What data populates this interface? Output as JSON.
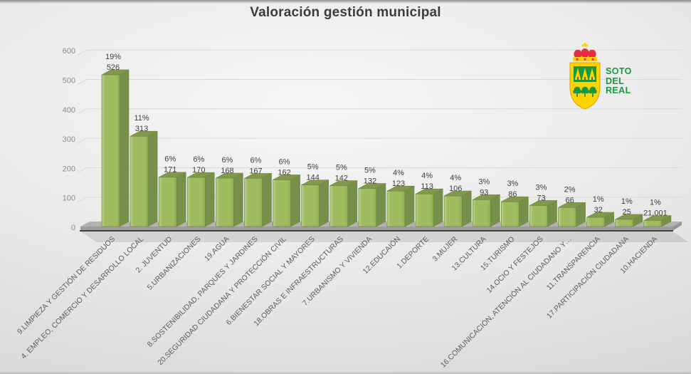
{
  "title": "Valoración gestión municipal",
  "logo": {
    "line1": "SOTO",
    "line2": "DEL",
    "line3": "REAL",
    "green": "#19993f",
    "yellow": "#ffd200",
    "red": "#e62e3e",
    "white": "#ffffff"
  },
  "chart_data": {
    "type": "bar",
    "style": "3d-column",
    "title": "Valoración gestión municipal",
    "categories": [
      "9.LIMPIEZA Y GESTIÓN DE RESIDUOS",
      "4. EMPLEO, COMERCIO Y DESARROLLO LOCAL",
      "2. JUVENTUD",
      "5.URBANIZACIONES",
      "19.AGUA",
      "8.SOSTENIBILIDAD, PARQUES Y JARDINES",
      "20.SEGURIDAD CIUDADANA Y PROTECCIÓN CIVIL",
      "6.BIENESTAR SOCIAL Y MAYORES",
      "18.OBRAS E INFRAESTRUCTURAS",
      "7.URBANISMO Y VIVIENDA",
      "12.EDUCAIÓN",
      "1.DEPORTE",
      "3.MUJER",
      "13.CULTURA",
      "15.TURISMO",
      "14.OCIO Y FESTEJOS",
      "16.COMUNICACIÓN, ATENCIÓN AL CIUDADANO Y…",
      "11.TRANSPARENCIA",
      "17.PARTICIPACIÓN CIUDADANA",
      "10.HACIENDA"
    ],
    "values": [
      526,
      313,
      171,
      170,
      168,
      167,
      162,
      144,
      142,
      132,
      123,
      113,
      106,
      93,
      86,
      73,
      66,
      32,
      25,
      21.001
    ],
    "value_labels": [
      "526",
      "313",
      "171",
      "170",
      "168",
      "167",
      "162",
      "144",
      "142",
      "132",
      "123",
      "113",
      "106",
      "93",
      "86",
      "73",
      "66",
      "32",
      "25",
      "21,001"
    ],
    "pct_labels": [
      "19%",
      "11%",
      "6%",
      "6%",
      "6%",
      "6%",
      "6%",
      "5%",
      "5%",
      "5%",
      "4%",
      "4%",
      "4%",
      "3%",
      "3%",
      "3%",
      "2%",
      "1%",
      "1%",
      "1%"
    ],
    "y_ticks": [
      0,
      100,
      200,
      300,
      400,
      500,
      600
    ],
    "ylim": [
      0,
      600
    ],
    "grid": true,
    "legend": false,
    "xlabel": "",
    "ylabel": "",
    "colors": {
      "bar_front": "#9fbc60",
      "bar_front_light": "#bdd28a",
      "bar_front_dark": "#8fae52",
      "bar_side": "#76904a",
      "bar_top": "#81984d",
      "bar_outline": "#6f873f",
      "data_label": "#404040",
      "axis_text": "#8a8a8a",
      "category_text": "#5c5c5c",
      "grid": "#d9d9d9",
      "floor": "#b2b2b2",
      "floor_side": "#9c9c9c",
      "floor_edge": "#414141"
    }
  }
}
